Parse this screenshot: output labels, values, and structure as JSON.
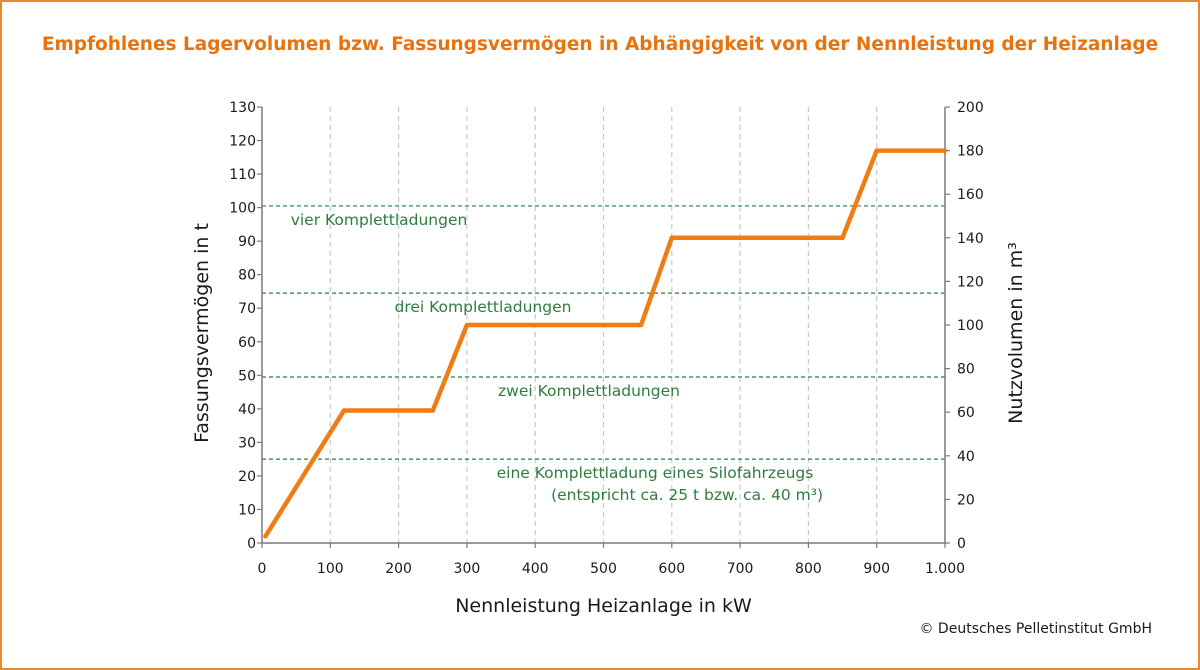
{
  "title": "Empfohlenes Lagervolumen bzw. Fassungsvermögen in Abhängigkeit von der Nennleistung der Heizanlage",
  "copyright": "© Deutsches Pelletinstitut GmbH",
  "colors": {
    "frame": "#e8892f",
    "title": "#e8720c",
    "line": "#ee7d14",
    "reference": "#2e7d3e",
    "grid": "#c8c8c8",
    "axis": "#7a7a7a",
    "text": "#1a1a1a"
  },
  "chart_data": {
    "type": "line",
    "xlabel": "Nennleistung Heizanlage in kW",
    "ylabel": "Fassungsvermögen in t",
    "y2label": "Nutzvolumen in m³",
    "xlim": [
      0,
      1000
    ],
    "ylim": [
      0,
      130
    ],
    "y2lim": [
      0,
      200
    ],
    "x_ticks": [
      0,
      100,
      200,
      300,
      400,
      500,
      600,
      700,
      800,
      900,
      1000
    ],
    "x_tick_labels": [
      "0",
      "100",
      "200",
      "300",
      "400",
      "500",
      "600",
      "700",
      "800",
      "900",
      "1.000"
    ],
    "y_ticks": [
      0,
      10,
      20,
      30,
      40,
      50,
      60,
      70,
      80,
      90,
      100,
      110,
      120,
      130
    ],
    "y2_ticks": [
      0,
      20,
      40,
      60,
      80,
      100,
      120,
      140,
      160,
      180,
      200
    ],
    "grid": {
      "vertical": true,
      "horizontal": false
    },
    "series": [
      {
        "x": [
          5,
          120,
          250,
          300,
          555,
          600,
          850,
          900,
          1000
        ],
        "y": [
          2,
          39.5,
          39.5,
          65,
          65,
          91,
          91,
          117,
          117
        ]
      }
    ],
    "reference_lines": [
      {
        "y": 25,
        "label": "eine Komplettladung eines Silofahrzeugs",
        "sublabel": "(entspricht ca. 25 t bzw. ca. 40 m³)"
      },
      {
        "y": 49.5,
        "label": "zwei Komplettladungen"
      },
      {
        "y": 74.5,
        "label": "drei Komplettladungen"
      },
      {
        "y": 100.5,
        "label": "vier Komplettladungen"
      }
    ]
  }
}
